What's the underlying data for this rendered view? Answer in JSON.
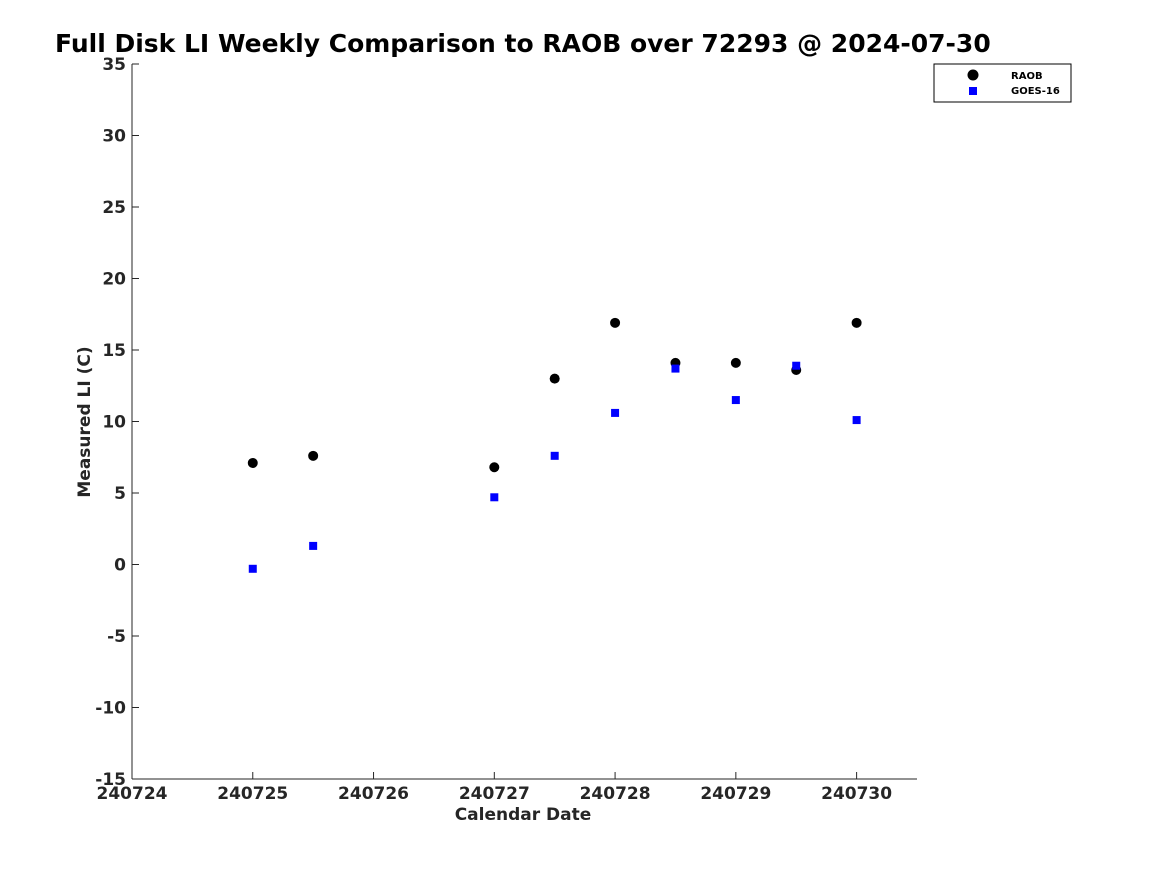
{
  "chart_data": {
    "type": "scatter",
    "title": "Full Disk LI Weekly Comparison to RAOB over 72293 @ 2024-07-30",
    "xlabel": "Calendar Date",
    "ylabel": "Measured LI (C)",
    "xlim": [
      240724,
      240730.5
    ],
    "ylim": [
      -15,
      35
    ],
    "xticks": [
      240724,
      240725,
      240726,
      240727,
      240728,
      240729,
      240730
    ],
    "xtick_labels": [
      "240724",
      "240725",
      "240726",
      "240727",
      "240728",
      "240729",
      "240730"
    ],
    "yticks": [
      -15,
      -10,
      -5,
      0,
      5,
      10,
      15,
      20,
      25,
      30,
      35
    ],
    "ytick_labels": [
      "-15",
      "-10",
      "-5",
      "0",
      "5",
      "10",
      "15",
      "20",
      "25",
      "30",
      "35"
    ],
    "grid": false,
    "legend_position": "top-right",
    "series": [
      {
        "name": "RAOB",
        "marker": "circle",
        "color": "#000000",
        "x": [
          240725,
          240725.5,
          240727,
          240727.5,
          240728,
          240728.5,
          240729,
          240729.5,
          240730
        ],
        "y": [
          7.1,
          7.6,
          6.8,
          13.0,
          16.9,
          14.1,
          14.1,
          13.6,
          16.9
        ]
      },
      {
        "name": "GOES-16",
        "marker": "square",
        "color": "#0000ff",
        "x": [
          240725,
          240725.5,
          240727,
          240727.5,
          240728,
          240728.5,
          240729,
          240729.5,
          240730
        ],
        "y": [
          -0.3,
          1.3,
          4.7,
          7.6,
          10.6,
          13.7,
          11.5,
          13.9,
          10.1
        ]
      }
    ]
  }
}
